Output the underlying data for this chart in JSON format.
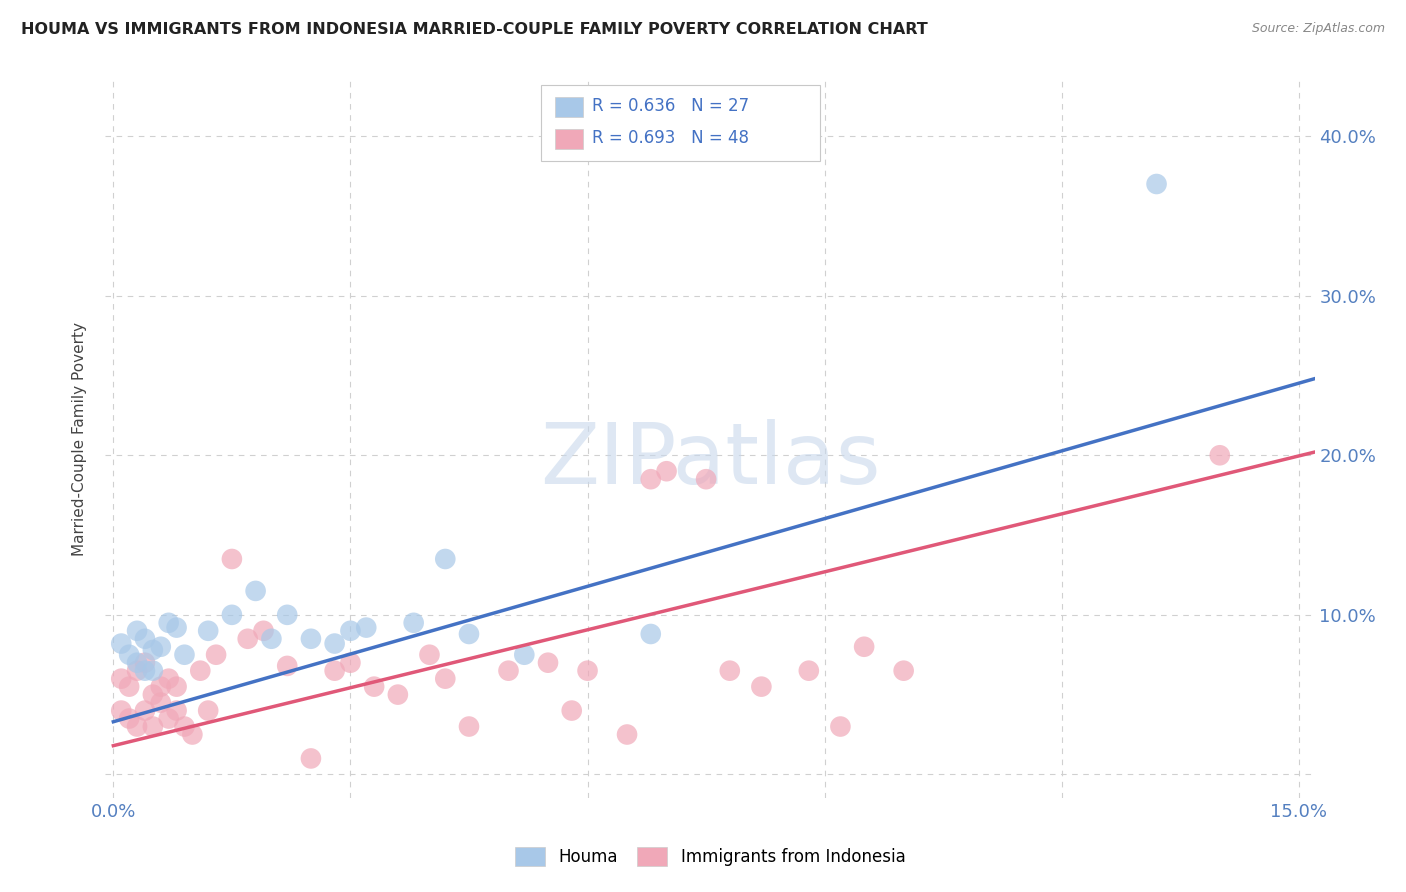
{
  "title": "HOUMA VS IMMIGRANTS FROM INDONESIA MARRIED-COUPLE FAMILY POVERTY CORRELATION CHART",
  "source": "Source: ZipAtlas.com",
  "ylabel": "Married-Couple Family Poverty",
  "xlim": [
    -0.001,
    0.152
  ],
  "ylim": [
    -0.015,
    0.435
  ],
  "xticks": [
    0.0,
    0.03,
    0.06,
    0.09,
    0.12,
    0.15
  ],
  "yticks": [
    0.0,
    0.1,
    0.2,
    0.3,
    0.4
  ],
  "legend_r1": "R = 0.636   N = 27",
  "legend_r2": "R = 0.693   N = 48",
  "watermark": "ZIPatlas",
  "houma_color": "#a8c8e8",
  "indonesia_color": "#f0a8b8",
  "houma_line_color": "#4472C4",
  "indonesia_line_color": "#E05878",
  "houma_x": [
    0.001,
    0.002,
    0.003,
    0.003,
    0.004,
    0.004,
    0.005,
    0.005,
    0.006,
    0.007,
    0.008,
    0.009,
    0.012,
    0.015,
    0.018,
    0.02,
    0.022,
    0.025,
    0.028,
    0.03,
    0.032,
    0.038,
    0.042,
    0.045,
    0.052,
    0.068,
    0.132
  ],
  "houma_y": [
    0.082,
    0.075,
    0.07,
    0.09,
    0.065,
    0.085,
    0.078,
    0.065,
    0.08,
    0.095,
    0.092,
    0.075,
    0.09,
    0.1,
    0.115,
    0.085,
    0.1,
    0.085,
    0.082,
    0.09,
    0.092,
    0.095,
    0.135,
    0.088,
    0.075,
    0.088,
    0.37
  ],
  "indonesia_x": [
    0.001,
    0.001,
    0.002,
    0.002,
    0.003,
    0.003,
    0.004,
    0.004,
    0.005,
    0.005,
    0.006,
    0.006,
    0.007,
    0.007,
    0.008,
    0.008,
    0.009,
    0.01,
    0.011,
    0.012,
    0.013,
    0.015,
    0.017,
    0.019,
    0.022,
    0.025,
    0.028,
    0.03,
    0.033,
    0.036,
    0.04,
    0.042,
    0.045,
    0.05,
    0.055,
    0.058,
    0.06,
    0.065,
    0.068,
    0.07,
    0.075,
    0.078,
    0.082,
    0.088,
    0.092,
    0.095,
    0.1,
    0.14
  ],
  "indonesia_y": [
    0.04,
    0.06,
    0.035,
    0.055,
    0.03,
    0.065,
    0.04,
    0.07,
    0.03,
    0.05,
    0.045,
    0.055,
    0.035,
    0.06,
    0.04,
    0.055,
    0.03,
    0.025,
    0.065,
    0.04,
    0.075,
    0.135,
    0.085,
    0.09,
    0.068,
    0.01,
    0.065,
    0.07,
    0.055,
    0.05,
    0.075,
    0.06,
    0.03,
    0.065,
    0.07,
    0.04,
    0.065,
    0.025,
    0.185,
    0.19,
    0.185,
    0.065,
    0.055,
    0.065,
    0.03,
    0.08,
    0.065,
    0.2
  ],
  "houma_line_x": [
    0.0,
    0.152
  ],
  "houma_line_y": [
    0.033,
    0.248
  ],
  "indonesia_line_x": [
    0.0,
    0.152
  ],
  "indonesia_line_y": [
    0.018,
    0.202
  ],
  "background_color": "#ffffff",
  "grid_color": "#d0d0d0"
}
